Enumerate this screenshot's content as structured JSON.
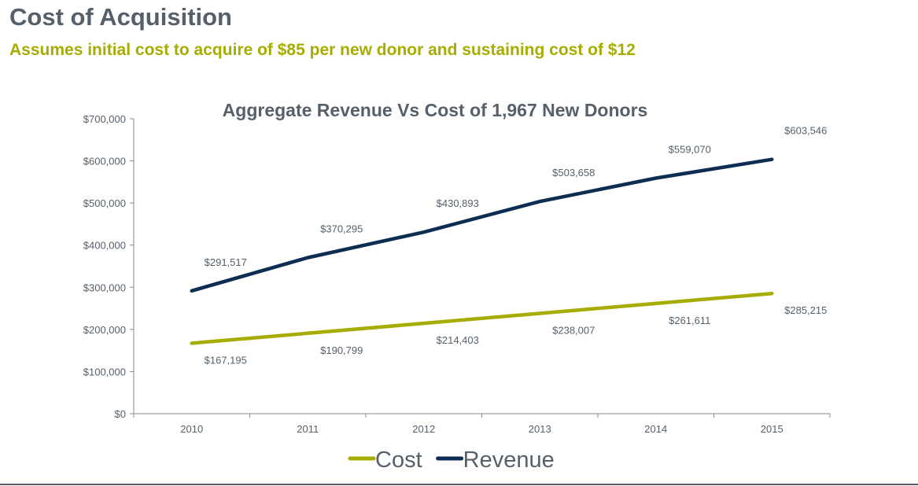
{
  "header": {
    "title": "Cost of Acquisition",
    "subtitle": "Assumes initial cost to acquire of $85 per new donor and sustaining cost of $12"
  },
  "chart_data": {
    "type": "line",
    "title": "Aggregate Revenue Vs Cost of 1,967 New Donors",
    "categories": [
      "2010",
      "2011",
      "2012",
      "2013",
      "2014",
      "2015"
    ],
    "ylim": [
      0,
      700000
    ],
    "yticks": [
      "$0",
      "$100,000",
      "$200,000",
      "$300,000",
      "$400,000",
      "$500,000",
      "$600,000",
      "$700,000"
    ],
    "grid": false,
    "legend": "bottom",
    "series": [
      {
        "name": "Cost",
        "color": "#a6ad00",
        "values": [
          167195,
          190799,
          214403,
          238007,
          261611,
          285215
        ],
        "labels": [
          "$167,195",
          "$190,799",
          "$214,403",
          "$238,007",
          "$261,611",
          "$285,215"
        ]
      },
      {
        "name": "Revenue",
        "color": "#0d2d52",
        "values": [
          291517,
          370295,
          430893,
          503658,
          559070,
          603546
        ],
        "labels": [
          "$291,517",
          "$370,295",
          "$430,893",
          "$503,658",
          "$559,070",
          "$603,546"
        ]
      }
    ]
  }
}
